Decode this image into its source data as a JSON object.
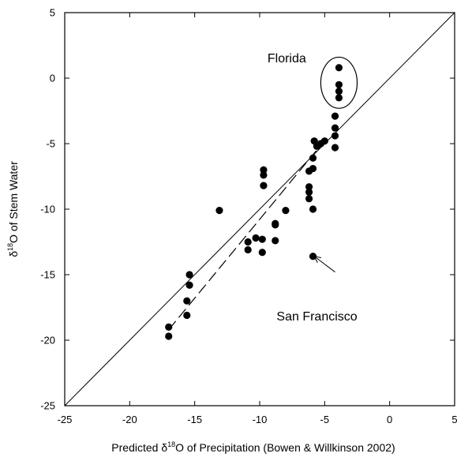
{
  "chart_data": {
    "type": "scatter",
    "title": "",
    "xlabel": {
      "prefix": "Predicted δ",
      "superscript": "18",
      "suffix": "O  of Precipitation  (Bowen & Willkinson 2002)"
    },
    "ylabel": {
      "prefix": "δ",
      "superscript": "18",
      "suffix": "O of Stem Water"
    },
    "xlim": [
      -25,
      5
    ],
    "ylim": [
      -25,
      5
    ],
    "xticks": [
      -25,
      -20,
      -15,
      -10,
      -5,
      0,
      5
    ],
    "yticks": [
      -25,
      -20,
      -15,
      -10,
      -5,
      0,
      5
    ],
    "xtick_labels": [
      "-25",
      "-20",
      "-15",
      "-10",
      "-5",
      "0",
      "5"
    ],
    "ytick_labels": [
      "-25",
      "-20",
      "-15",
      "-10",
      "-5",
      "0",
      "5"
    ],
    "grid": false,
    "series": [
      {
        "points": [
          [
            -17.0,
            -19.0
          ],
          [
            -17.0,
            -19.7
          ],
          [
            -15.6,
            -17.0
          ],
          [
            -15.6,
            -18.1
          ],
          [
            -15.4,
            -15.0
          ],
          [
            -15.4,
            -15.8
          ],
          [
            -13.1,
            -10.1
          ],
          [
            -10.9,
            -12.5
          ],
          [
            -10.9,
            -13.1
          ],
          [
            -10.3,
            -12.2
          ],
          [
            -9.8,
            -12.3
          ],
          [
            -9.8,
            -13.3
          ],
          [
            -9.7,
            -7.0
          ],
          [
            -9.7,
            -7.4
          ],
          [
            -9.7,
            -8.2
          ],
          [
            -8.8,
            -11.1
          ],
          [
            -8.8,
            -11.2
          ],
          [
            -8.8,
            -12.4
          ],
          [
            -8.0,
            -10.1
          ],
          [
            -6.2,
            -7.1
          ],
          [
            -6.2,
            -8.3
          ],
          [
            -6.2,
            -8.7
          ],
          [
            -6.2,
            -9.2
          ],
          [
            -5.9,
            -6.1
          ],
          [
            -5.9,
            -6.9
          ],
          [
            -5.9,
            -10.0
          ],
          [
            -5.9,
            -13.6
          ],
          [
            -5.8,
            -4.8
          ],
          [
            -5.6,
            -5.2
          ],
          [
            -5.3,
            -5.0
          ],
          [
            -5.0,
            -4.8
          ],
          [
            -4.2,
            -2.9
          ],
          [
            -4.2,
            -3.8
          ],
          [
            -4.2,
            -4.4
          ],
          [
            -4.2,
            -5.3
          ],
          [
            -3.9,
            0.8
          ],
          [
            -3.9,
            -0.5
          ],
          [
            -3.9,
            -1.0
          ],
          [
            -3.9,
            -1.5
          ]
        ]
      }
    ],
    "lines": [
      {
        "style": "solid",
        "from": [
          -25,
          -25
        ],
        "to": [
          5,
          5
        ]
      },
      {
        "style": "dashed",
        "from": [
          -17.0,
          -19.2
        ],
        "to": [
          -5.2,
          -5.0
        ]
      }
    ],
    "annotations": [
      {
        "text": "Florida",
        "at": [
          -9.4,
          1.2
        ]
      },
      {
        "text": "San Francisco",
        "at": [
          -8.7,
          -18.5
        ]
      }
    ],
    "highlight_ellipse": {
      "center": [
        -3.9,
        -0.35
      ],
      "radius_x": 1.4,
      "radius_y": 1.95
    },
    "arrow": {
      "from": [
        -4.2,
        -14.8
      ],
      "to": [
        -5.8,
        -13.6
      ]
    }
  }
}
